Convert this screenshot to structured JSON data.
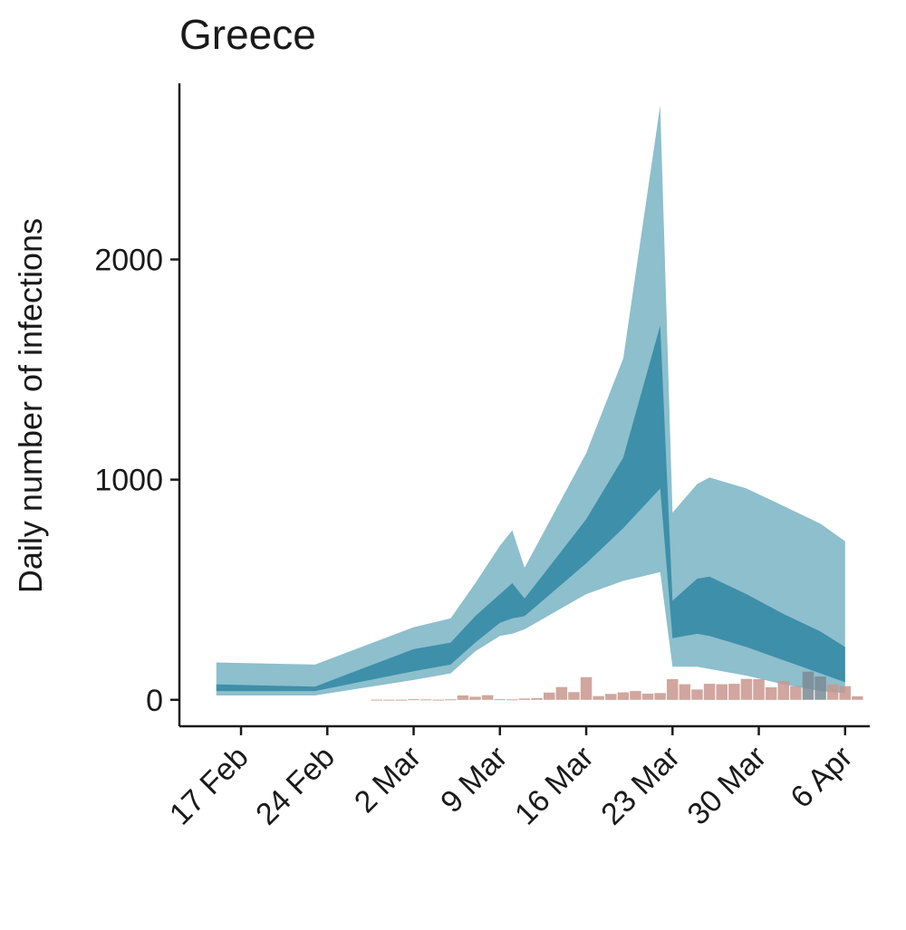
{
  "chart_data": {
    "type": "area",
    "title": "Greece",
    "xlabel": "",
    "ylabel": "Daily number of infections",
    "ylim": [
      -120,
      2800
    ],
    "xlim": [
      "2020-02-12",
      "2020-04-08"
    ],
    "yticks": [
      0,
      1000,
      2000
    ],
    "xticks": [
      {
        "date": "2020-02-17",
        "label": "17 Feb"
      },
      {
        "date": "2020-02-24",
        "label": "24 Feb"
      },
      {
        "date": "2020-03-02",
        "label": "2 Mar"
      },
      {
        "date": "2020-03-09",
        "label": "9 Mar"
      },
      {
        "date": "2020-03-16",
        "label": "16 Mar"
      },
      {
        "date": "2020-03-23",
        "label": "23 Mar"
      },
      {
        "date": "2020-03-30",
        "label": "30 Mar"
      },
      {
        "date": "2020-04-06",
        "label": "6 Apr"
      }
    ],
    "colors": {
      "outer_band": "#8dbfcd",
      "inner_band": "#3e8fa9",
      "bars": "#c8978d",
      "bars_dark": "#7a8a93",
      "axis": "#1a1a1a"
    },
    "series": [
      {
        "band": "outer",
        "x": [
          "2020-02-15",
          "2020-02-23",
          "2020-03-02",
          "2020-03-05",
          "2020-03-07",
          "2020-03-09",
          "2020-03-10",
          "2020-03-11",
          "2020-03-16",
          "2020-03-19",
          "2020-03-22",
          "2020-03-23",
          "2020-03-25",
          "2020-03-26",
          "2020-03-29",
          "2020-04-01",
          "2020-04-04",
          "2020-04-06"
        ],
        "upper": [
          170,
          160,
          330,
          370,
          530,
          700,
          770,
          600,
          1120,
          1550,
          2700,
          850,
          980,
          1010,
          960,
          880,
          800,
          720
        ],
        "lower": [
          20,
          20,
          90,
          120,
          220,
          290,
          300,
          320,
          480,
          540,
          580,
          150,
          150,
          140,
          110,
          70,
          40,
          30
        ]
      },
      {
        "band": "inner",
        "x": [
          "2020-02-15",
          "2020-02-23",
          "2020-03-02",
          "2020-03-05",
          "2020-03-07",
          "2020-03-09",
          "2020-03-10",
          "2020-03-11",
          "2020-03-16",
          "2020-03-19",
          "2020-03-22",
          "2020-03-23",
          "2020-03-25",
          "2020-03-26",
          "2020-03-29",
          "2020-04-01",
          "2020-04-04",
          "2020-04-06"
        ],
        "upper": [
          70,
          60,
          230,
          260,
          380,
          480,
          530,
          460,
          820,
          1100,
          1700,
          450,
          550,
          560,
          480,
          390,
          310,
          240
        ],
        "lower": [
          40,
          40,
          130,
          160,
          260,
          350,
          370,
          380,
          620,
          780,
          960,
          280,
          300,
          290,
          240,
          180,
          120,
          80
        ]
      }
    ],
    "bars": {
      "x": [
        "2020-02-28",
        "2020-02-29",
        "2020-03-01",
        "2020-03-02",
        "2020-03-03",
        "2020-03-04",
        "2020-03-05",
        "2020-03-06",
        "2020-03-07",
        "2020-03-08",
        "2020-03-09",
        "2020-03-10",
        "2020-03-11",
        "2020-03-12",
        "2020-03-13",
        "2020-03-14",
        "2020-03-15",
        "2020-03-16",
        "2020-03-17",
        "2020-03-18",
        "2020-03-19",
        "2020-03-20",
        "2020-03-21",
        "2020-03-22",
        "2020-03-23",
        "2020-03-24",
        "2020-03-25",
        "2020-03-26",
        "2020-03-27",
        "2020-03-28",
        "2020-03-29",
        "2020-03-30",
        "2020-03-31",
        "2020-04-01",
        "2020-04-02",
        "2020-04-03",
        "2020-04-04",
        "2020-04-05",
        "2020-04-06",
        "2020-04-07"
      ],
      "values": [
        1,
        1,
        1,
        3,
        2,
        1,
        2,
        20,
        14,
        21,
        3,
        2,
        6,
        8,
        33,
        58,
        35,
        103,
        17,
        27,
        34,
        40,
        28,
        31,
        94,
        71,
        47,
        73,
        71,
        73,
        95,
        94,
        57,
        85,
        62,
        128,
        106,
        70,
        62,
        16
      ]
    }
  }
}
